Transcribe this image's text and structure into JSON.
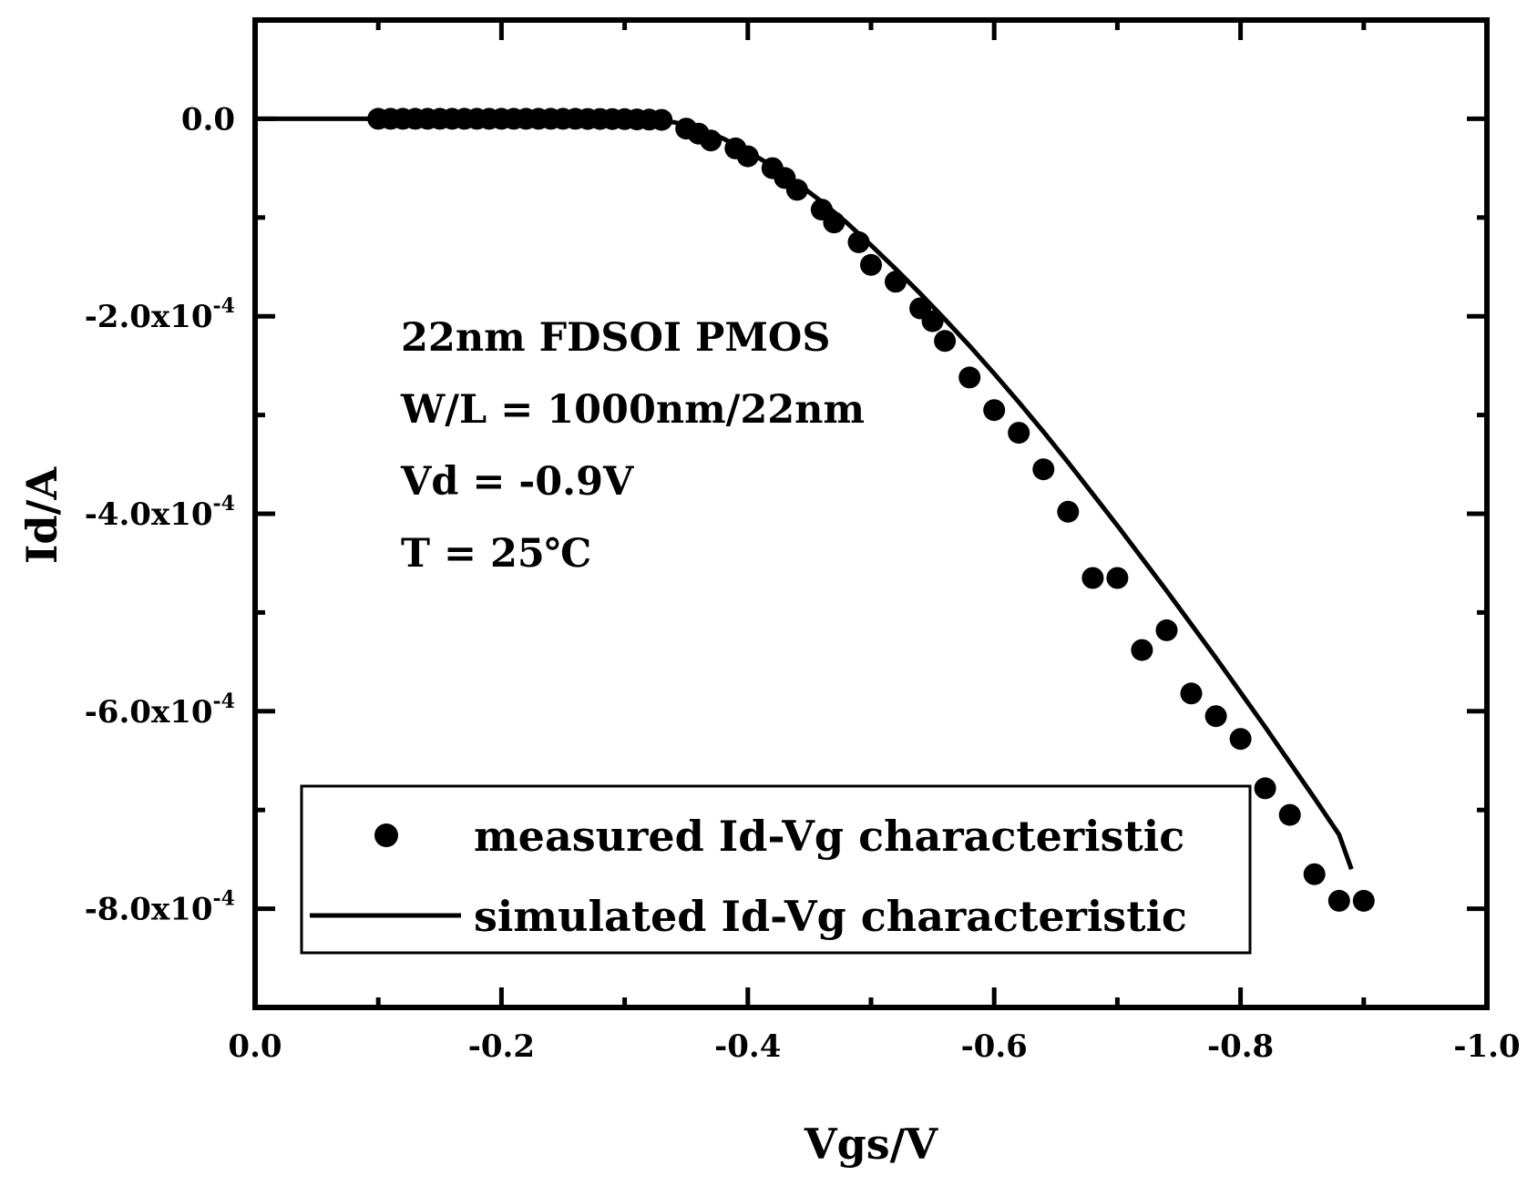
{
  "chart_data": {
    "type": "scatter",
    "xlabel": "Vgs/V",
    "ylabel": "Id/A",
    "xlim": [
      0.0,
      -1.0
    ],
    "ylim": [
      0.0001,
      -0.0009
    ],
    "x_ticks": [
      0.0,
      -0.2,
      -0.4,
      -0.6,
      -0.8,
      -1.0
    ],
    "x_tick_labels": [
      "0.0",
      "-0.2",
      "-0.4",
      "-0.6",
      "-0.8",
      "-1.0"
    ],
    "y_ticks": [
      0.0,
      -0.0002,
      -0.0004,
      -0.0006,
      -0.0008
    ],
    "y_tick_labels": [
      {
        "mantissa": "0.0",
        "exp": ""
      },
      {
        "mantissa": "-2.0x10",
        "exp": "-4"
      },
      {
        "mantissa": "-4.0x10",
        "exp": "-4"
      },
      {
        "mantissa": "-6.0x10",
        "exp": "-4"
      },
      {
        "mantissa": "-8.0x10",
        "exp": "-4"
      }
    ],
    "annotations": [
      "22nm FDSOI PMOS",
      "W/L = 1000nm/22nm",
      "Vd = -0.9V",
      "T = 25℃"
    ],
    "legend_position": "bottom-right",
    "series": [
      {
        "name": "measured Id-Vg characteristic",
        "kind": "markers",
        "x": [
          -0.1,
          -0.11,
          -0.12,
          -0.13,
          -0.14,
          -0.15,
          -0.16,
          -0.17,
          -0.18,
          -0.19,
          -0.2,
          -0.21,
          -0.22,
          -0.23,
          -0.24,
          -0.25,
          -0.26,
          -0.27,
          -0.28,
          -0.29,
          -0.3,
          -0.31,
          -0.32,
          -0.33,
          -0.35,
          -0.36,
          -0.37,
          -0.39,
          -0.4,
          -0.42,
          -0.43,
          -0.44,
          -0.46,
          -0.47,
          -0.49,
          -0.5,
          -0.52,
          -0.54,
          -0.55,
          -0.56,
          -0.58,
          -0.6,
          -0.62,
          -0.64,
          -0.66,
          -0.68,
          -0.7,
          -0.72,
          -0.74,
          -0.76,
          -0.78,
          -0.8,
          -0.82,
          -0.84,
          -0.86,
          -0.88,
          -0.9
        ],
        "y": [
          0.0,
          0.0,
          0.0,
          0.0,
          0.0,
          0.0,
          0.0,
          0.0,
          0.0,
          0.0,
          0.0,
          0.0,
          0.0,
          0.0,
          0.0,
          0.0,
          0.0,
          -2e-07,
          -2e-07,
          -3e-07,
          -4e-07,
          -6e-07,
          -8e-07,
          -1.1e-06,
          -1e-05,
          -1.5e-05,
          -2.2e-05,
          -3e-05,
          -3.8e-05,
          -5e-05,
          -6e-05,
          -7.2e-05,
          -9.2e-05,
          -0.000105,
          -0.000125,
          -0.000148,
          -0.000165,
          -0.000192,
          -0.000205,
          -0.000225,
          -0.000262,
          -0.000295,
          -0.000318,
          -0.000355,
          -0.000398,
          -0.000465,
          -0.000465,
          -0.000538,
          -0.000518,
          -0.000582,
          -0.000605,
          -0.000628,
          -0.000678,
          -0.000705,
          -0.000765,
          -0.000792,
          -0.000792
        ]
      },
      {
        "name": "simulated Id-Vg characteristic",
        "kind": "line",
        "x": [
          0.0,
          -0.1,
          -0.2,
          -0.25,
          -0.3,
          -0.32,
          -0.34,
          -0.36,
          -0.38,
          -0.4,
          -0.42,
          -0.44,
          -0.46,
          -0.48,
          -0.5,
          -0.52,
          -0.54,
          -0.56,
          -0.58,
          -0.6,
          -0.62,
          -0.64,
          -0.66,
          -0.68,
          -0.7,
          -0.72,
          -0.74,
          -0.76,
          -0.78,
          -0.8,
          -0.82,
          -0.84,
          -0.86,
          -0.88,
          -0.89
        ],
        "y": [
          0.0,
          0.0,
          0.0,
          -1e-07,
          -4e-07,
          -1e-06,
          -3.5e-06,
          -1e-05,
          -2e-05,
          -3.3e-05,
          -4.8e-05,
          -6.5e-05,
          -8.4e-05,
          -0.000105,
          -0.000128,
          -0.000152,
          -0.000177,
          -0.000203,
          -0.00023,
          -0.000258,
          -0.000287,
          -0.000317,
          -0.000348,
          -0.00038,
          -0.000412,
          -0.000445,
          -0.000478,
          -0.000512,
          -0.000546,
          -0.000581,
          -0.000616,
          -0.000652,
          -0.000688,
          -0.000725,
          -0.00076
        ]
      }
    ]
  }
}
